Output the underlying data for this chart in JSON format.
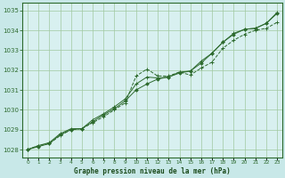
{
  "title": "Graphe pression niveau de la mer (hPa)",
  "bg_color": "#c8e8e8",
  "plot_bg_color": "#d8f0f0",
  "line_color": "#2d6a2d",
  "grid_color": "#a0c8a0",
  "xlabel_color": "#1a4a1a",
  "xlim": [
    -0.5,
    23.5
  ],
  "ylim": [
    1027.6,
    1035.4
  ],
  "yticks": [
    1028,
    1029,
    1030,
    1031,
    1032,
    1033,
    1034,
    1035
  ],
  "xticks": [
    0,
    1,
    2,
    3,
    4,
    5,
    6,
    7,
    8,
    9,
    10,
    11,
    12,
    13,
    14,
    15,
    16,
    17,
    18,
    19,
    20,
    21,
    22,
    23
  ],
  "line1_x": [
    0,
    1,
    2,
    3,
    4,
    5,
    6,
    7,
    8,
    9,
    10,
    11,
    12,
    13,
    14,
    15,
    16,
    17,
    18,
    19,
    20,
    21,
    22,
    23
  ],
  "line1_y": [
    1028.0,
    1028.2,
    1028.3,
    1028.7,
    1029.0,
    1029.05,
    1029.35,
    1029.65,
    1030.0,
    1030.35,
    1031.7,
    1032.05,
    1031.7,
    1031.7,
    1031.9,
    1031.75,
    1032.1,
    1032.4,
    1033.1,
    1033.5,
    1033.8,
    1034.0,
    1034.1,
    1034.4
  ],
  "line2_x": [
    0,
    1,
    2,
    3,
    4,
    5,
    6,
    7,
    8,
    9,
    10,
    11,
    12,
    13,
    14,
    15,
    16,
    17,
    18,
    19,
    20,
    21,
    22,
    23
  ],
  "line2_y": [
    1028.0,
    1028.15,
    1028.3,
    1028.75,
    1029.0,
    1029.05,
    1029.4,
    1029.75,
    1030.05,
    1030.45,
    1031.0,
    1031.3,
    1031.55,
    1031.65,
    1031.85,
    1031.95,
    1032.35,
    1032.85,
    1033.4,
    1033.8,
    1034.05,
    1034.1,
    1034.35,
    1034.85
  ],
  "line3_x": [
    0,
    1,
    2,
    3,
    4,
    5,
    6,
    7,
    8,
    9,
    10,
    11,
    12,
    13,
    14,
    15,
    16,
    17,
    18,
    19,
    20,
    21,
    22,
    23
  ],
  "line3_y": [
    1028.0,
    1028.2,
    1028.35,
    1028.8,
    1029.05,
    1029.05,
    1029.5,
    1029.8,
    1030.15,
    1030.55,
    1031.3,
    1031.65,
    1031.6,
    1031.65,
    1031.9,
    1031.95,
    1032.45,
    1032.85,
    1033.4,
    1033.85,
    1034.05,
    1034.1,
    1034.35,
    1034.9
  ]
}
